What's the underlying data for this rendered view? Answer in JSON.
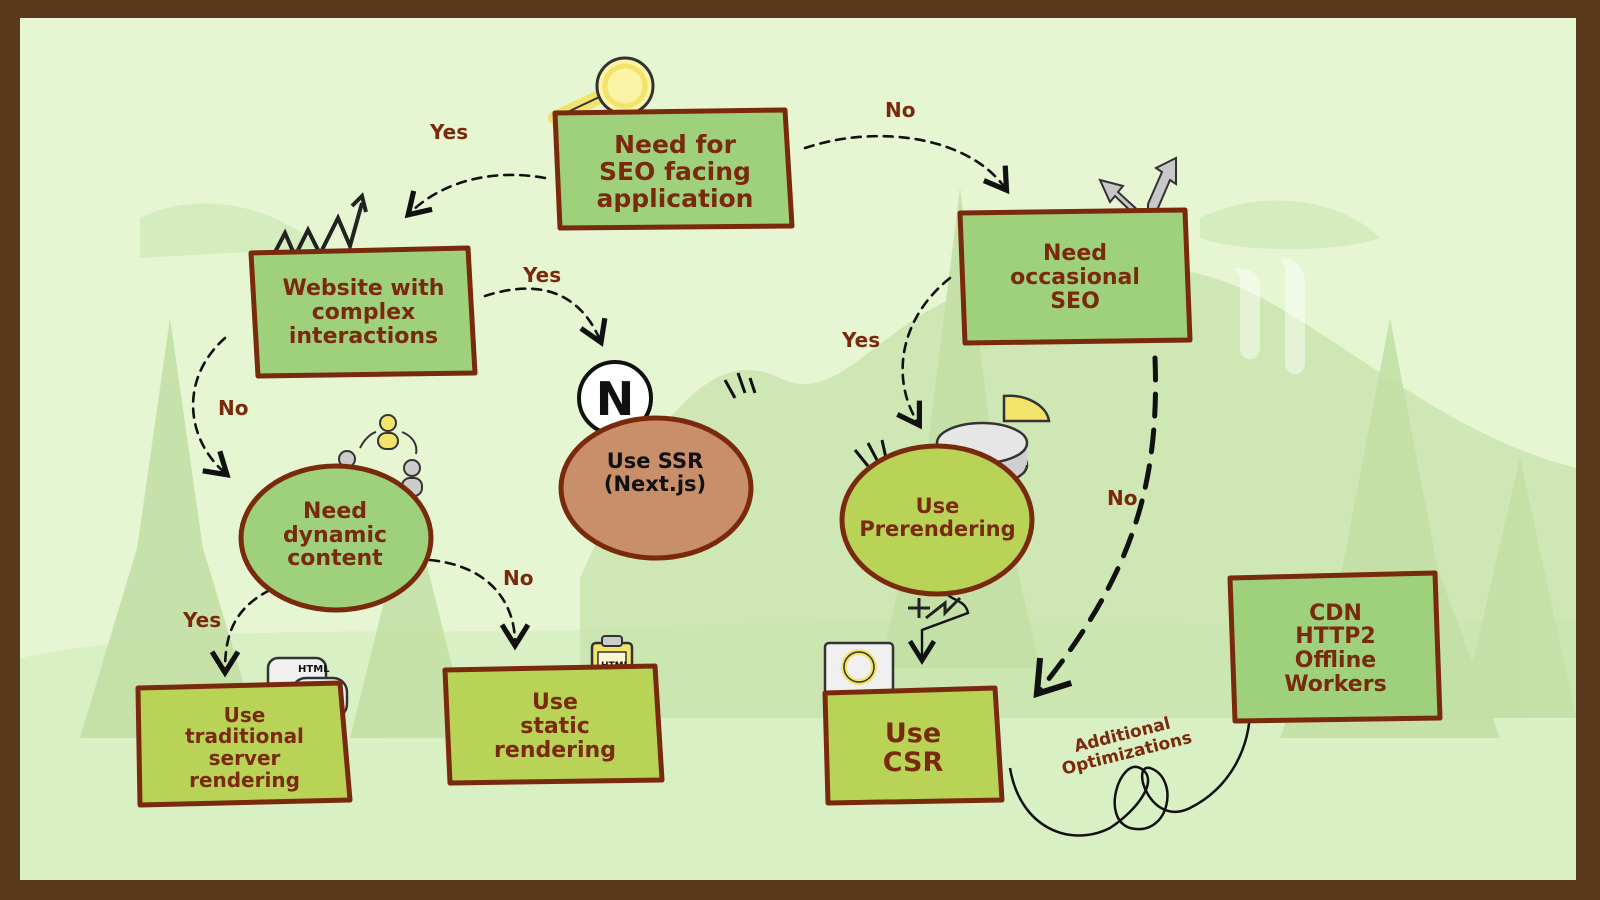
{
  "nodes": {
    "seo": "Need for\nSEO facing\napplication",
    "complex": "Website with\ncomplex\ninteractions",
    "occasional": "Need\noccasional\nSEO",
    "ssr": "Use SSR\n(Next.js)",
    "dynamic": "Need\ndynamic\ncontent",
    "prerender": "Use\nPrerendering",
    "traditional": "Use\ntraditional\nserver\nrendering",
    "static": "Use\nstatic\nrendering",
    "csr": "Use\nCSR",
    "optimizations": "CDN\nHTTP2\nOffline\nWorkers"
  },
  "edges": {
    "seo_yes": "Yes",
    "seo_no": "No",
    "complex_yes": "Yes",
    "complex_no": "No",
    "occasional_yes": "Yes",
    "occasional_no": "No",
    "dynamic_yes": "Yes",
    "dynamic_no": "No"
  },
  "caption": "Additional\nOptimizations",
  "icons": {
    "ssr_logo_letter": "N",
    "html_tag": "HTML",
    "js_tag": "JS",
    "clipboard_tag": "HTML"
  },
  "colors": {
    "frame": "#5a3a1c",
    "background": "#e6f6d3",
    "box_green": "#9fd17c",
    "box_lime": "#b9d356",
    "box_ssr": "#c98f6a",
    "text": "#7a2a0c",
    "outline": "#7a2a0c"
  }
}
